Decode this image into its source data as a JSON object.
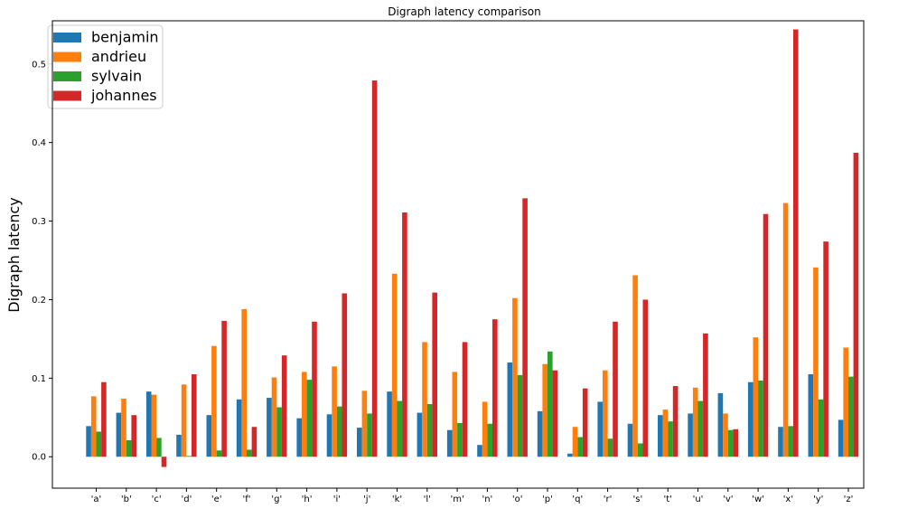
{
  "chart_data": {
    "type": "bar",
    "title": "Digraph latency comparison",
    "xlabel": "",
    "ylabel": "Digraph latency",
    "ylim": [
      -0.04,
      0.555
    ],
    "yticks": [
      0.0,
      0.1,
      0.2,
      0.3,
      0.4,
      0.5
    ],
    "ytick_labels": [
      "0.0",
      "0.1",
      "0.2",
      "0.3",
      "0.4",
      "0.5"
    ],
    "grid": false,
    "legend_position": "top-left",
    "categories": [
      "'a'",
      "'b'",
      "'c'",
      "'d'",
      "'e'",
      "'f'",
      "'g'",
      "'h'",
      "'i'",
      "'j'",
      "'k'",
      "'l'",
      "'m'",
      "'n'",
      "'o'",
      "'p'",
      "'q'",
      "'r'",
      "'s'",
      "'t'",
      "'u'",
      "'v'",
      "'w'",
      "'x'",
      "'y'",
      "'z'"
    ],
    "series": [
      {
        "name": "benjamin",
        "color": "#1f77b4",
        "values": [
          0.039,
          0.056,
          0.083,
          0.028,
          0.053,
          0.073,
          0.075,
          0.049,
          0.054,
          0.037,
          0.083,
          0.056,
          0.034,
          0.015,
          0.12,
          0.058,
          0.004,
          0.07,
          0.042,
          0.053,
          0.055,
          0.081,
          0.095,
          0.038,
          0.105,
          0.047
        ]
      },
      {
        "name": "andrieu",
        "color": "#ff7f0e",
        "values": [
          0.077,
          0.074,
          0.079,
          0.092,
          0.141,
          0.188,
          0.101,
          0.108,
          0.115,
          0.084,
          0.233,
          0.146,
          0.108,
          0.07,
          0.202,
          0.118,
          0.038,
          0.11,
          0.231,
          0.06,
          0.088,
          0.055,
          0.152,
          0.323,
          0.241,
          0.139
        ]
      },
      {
        "name": "sylvain",
        "color": "#2ca02c",
        "values": [
          0.032,
          0.021,
          0.024,
          0.001,
          0.008,
          0.009,
          0.063,
          0.098,
          0.064,
          0.055,
          0.071,
          0.067,
          0.043,
          0.042,
          0.104,
          0.134,
          0.025,
          0.023,
          0.017,
          0.045,
          0.071,
          0.034,
          0.097,
          0.039,
          0.073,
          0.102
        ]
      },
      {
        "name": "johannes",
        "color": "#d62728",
        "values": [
          0.095,
          0.053,
          -0.013,
          0.105,
          0.173,
          0.038,
          0.129,
          0.172,
          0.208,
          0.479,
          0.311,
          0.209,
          0.146,
          0.175,
          0.329,
          0.11,
          0.087,
          0.172,
          0.2,
          0.09,
          0.157,
          0.035,
          0.309,
          0.544,
          0.274,
          0.387
        ]
      }
    ]
  }
}
